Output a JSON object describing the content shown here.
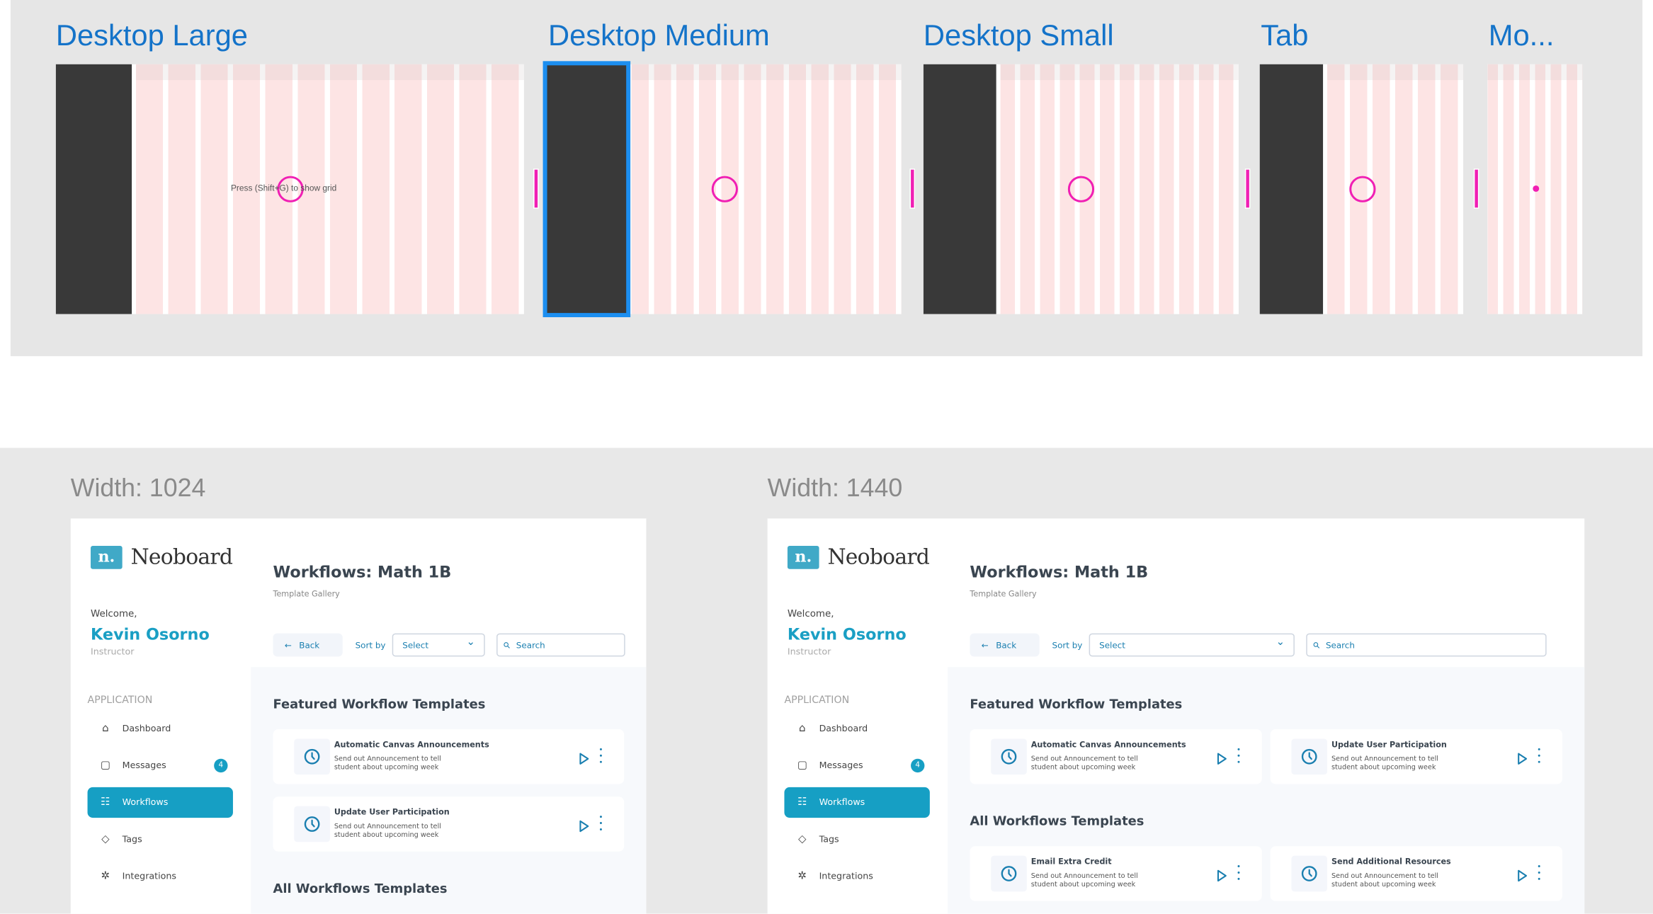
{
  "frames": [
    {
      "label": "Desktop Large",
      "hint": "Press (Shift+G) to show grid"
    },
    {
      "label": "Desktop Medium",
      "selected": true
    },
    {
      "label": "Desktop Small"
    },
    {
      "label": "Tab"
    },
    {
      "label": "Mo..."
    }
  ],
  "colors": {
    "accent": "#169fc4",
    "frame_title": "#1473c9",
    "selection": "#1c8ef0",
    "grid": "#fde4e4",
    "marker": "#f01fb4"
  },
  "mockups": [
    {
      "width_label": "Width: 1024",
      "brand": "Neoboard",
      "logo": "n.",
      "welcome": "Welcome,",
      "user": "Kevin Osorno",
      "role": "Instructor",
      "section": "APPLICATION",
      "nav": [
        {
          "label": "Dashboard",
          "icon": "home-icon"
        },
        {
          "label": "Messages",
          "icon": "message-icon",
          "badge": "4"
        },
        {
          "label": "Workflows",
          "icon": "workflow-icon",
          "active": true
        },
        {
          "label": "Tags",
          "icon": "tag-icon"
        },
        {
          "label": "Integrations",
          "icon": "integrations-icon"
        }
      ],
      "title": "Workflows: Math 1B",
      "subtitle": "Template Gallery",
      "back": "Back",
      "sort_by": "Sort by",
      "select": "Select",
      "search_placeholder": "Search",
      "featured_heading": "Featured Workflow Templates",
      "featured": [
        {
          "title": "Automatic Canvas Announcements",
          "desc": "Send out Announcement to tell student about upcoming week"
        },
        {
          "title": "Update User Participation",
          "desc": "Send out Announcement to tell student about upcoming week"
        }
      ],
      "all_heading": "All Workflows Templates",
      "all": []
    },
    {
      "width_label": "Width: 1440",
      "brand": "Neoboard",
      "logo": "n.",
      "welcome": "Welcome,",
      "user": "Kevin Osorno",
      "role": "Instructor",
      "section": "APPLICATION",
      "nav": [
        {
          "label": "Dashboard",
          "icon": "home-icon"
        },
        {
          "label": "Messages",
          "icon": "message-icon",
          "badge": "4"
        },
        {
          "label": "Workflows",
          "icon": "workflow-icon",
          "active": true
        },
        {
          "label": "Tags",
          "icon": "tag-icon"
        },
        {
          "label": "Integrations",
          "icon": "integrations-icon"
        }
      ],
      "title": "Workflows: Math 1B",
      "subtitle": "Template Gallery",
      "back": "Back",
      "sort_by": "Sort by",
      "select": "Select",
      "search_placeholder": "Search",
      "featured_heading": "Featured Workflow Templates",
      "featured": [
        {
          "title": "Automatic Canvas Announcements",
          "desc": "Send out Announcement to tell student about upcoming week"
        },
        {
          "title": "Update User Participation",
          "desc": "Send out Announcement to tell student about upcoming week"
        }
      ],
      "all_heading": "All Workflows Templates",
      "all": [
        {
          "title": "Email Extra Credit",
          "desc": "Send out Announcement to tell student about upcoming week"
        },
        {
          "title": "Send Additional Resources",
          "desc": "Send out Announcement to tell student about upcoming week"
        }
      ]
    }
  ]
}
